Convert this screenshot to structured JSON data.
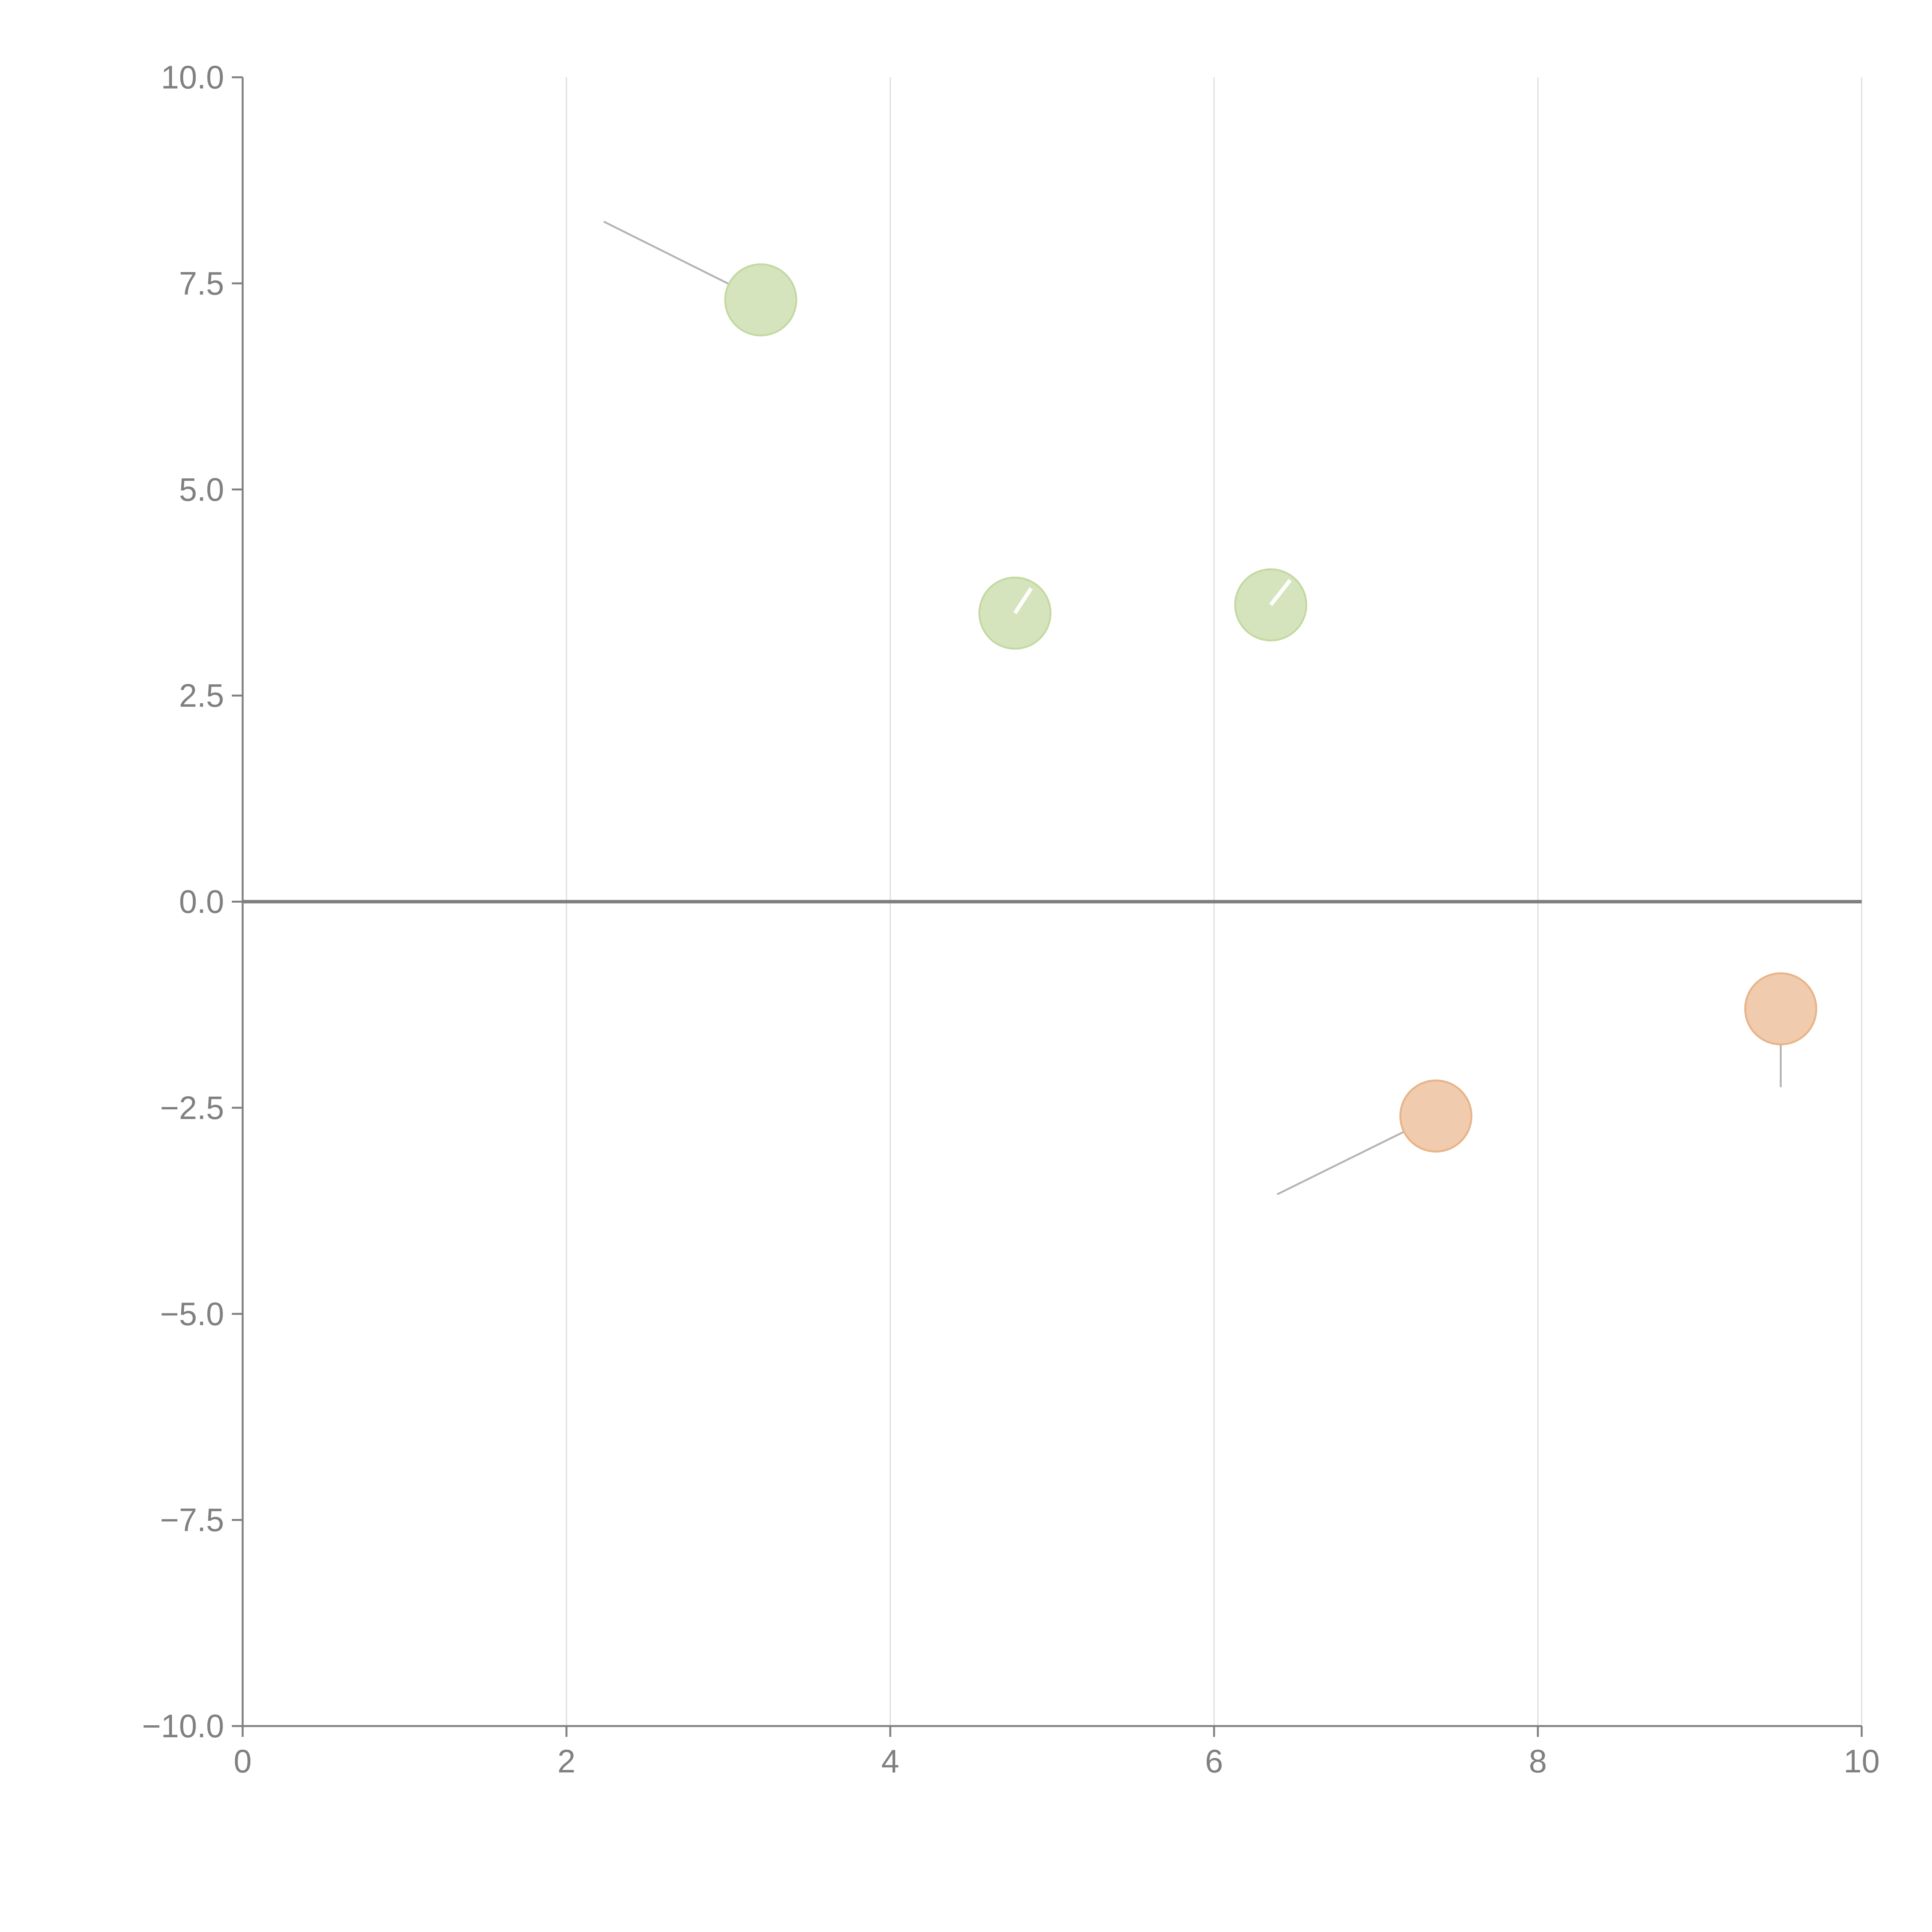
{
  "chart_data": {
    "type": "scatter",
    "title": "",
    "xlabel": "",
    "ylabel": "",
    "xlim": [
      0,
      10
    ],
    "ylim": [
      -10,
      10
    ],
    "x_ticks": [
      0,
      2,
      4,
      6,
      8,
      10
    ],
    "x_tick_labels": [
      "0",
      "2",
      "4",
      "6",
      "8",
      "10"
    ],
    "y_ticks": [
      10,
      7.5,
      5,
      2.5,
      0,
      -2.5,
      -5,
      -7.5,
      -10
    ],
    "y_tick_labels": [
      "10.0",
      "7.5",
      "5.0",
      "2.5",
      "0.0",
      "−2.5",
      "−5.0",
      "−7.5",
      "−10.0"
    ],
    "grid": {
      "vertical": true,
      "horizontal": false
    },
    "zero_line": true,
    "points": [
      {
        "x": 3.2,
        "y": 7.3,
        "group": "positive",
        "leader_to": {
          "x": 2.23,
          "y": 8.25
        }
      },
      {
        "x": 4.77,
        "y": 3.5,
        "group": "positive",
        "leader_to": {
          "x": 4.87,
          "y": 3.8
        }
      },
      {
        "x": 6.35,
        "y": 3.6,
        "group": "positive",
        "leader_to": {
          "x": 6.47,
          "y": 3.9
        }
      },
      {
        "x": 7.37,
        "y": -2.6,
        "group": "negative",
        "leader_to": {
          "x": 6.39,
          "y": -3.55
        }
      },
      {
        "x": 9.5,
        "y": -1.3,
        "group": "negative",
        "leader_to": {
          "x": 9.5,
          "y": -2.25
        }
      }
    ],
    "colors": {
      "positive_fill": "#d6e4bd",
      "positive_stroke": "#c4d9a2",
      "negative_fill": "#f0cbad",
      "negative_stroke": "#e8b48a",
      "axis": "#808080",
      "grid": "#dddddd",
      "zero_line": "#808080",
      "leader": "#b5b5b5"
    }
  }
}
